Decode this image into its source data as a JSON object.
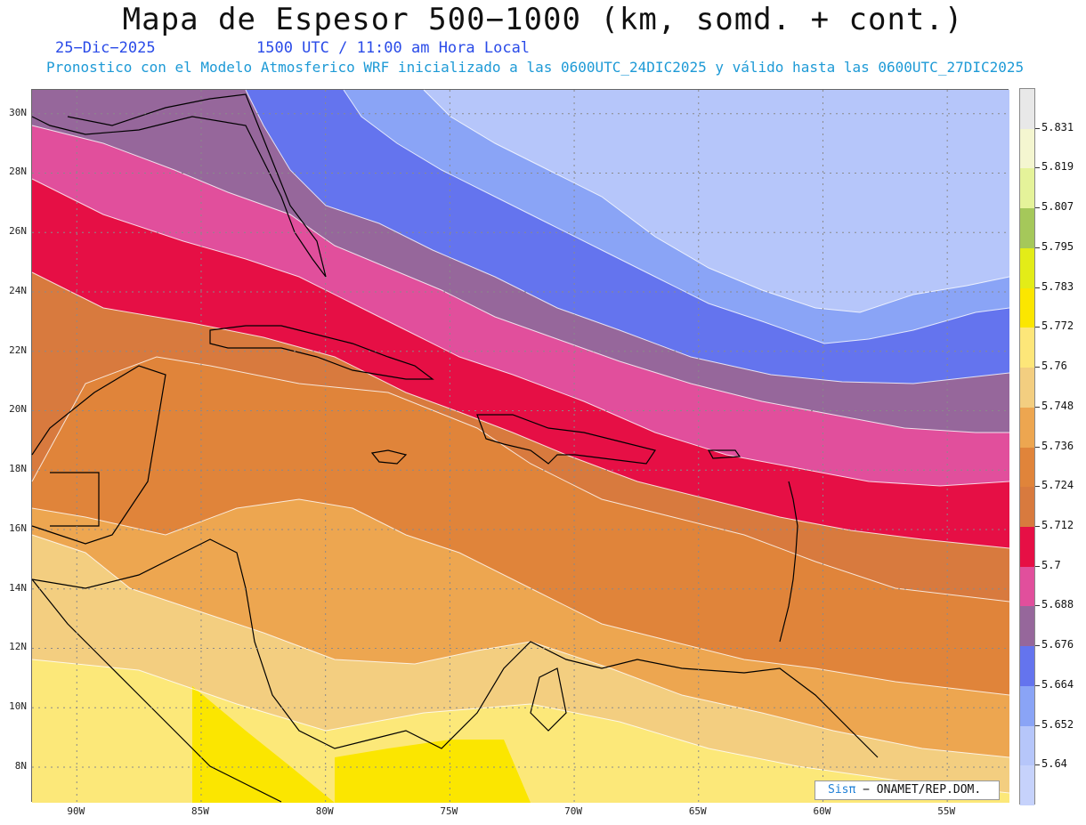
{
  "header": {
    "title": "Mapa de Espesor 500−1000 (km, somd. + cont.)",
    "date": "25−Dic−2025",
    "time": "1500 UTC / 11:00 am Hora Local",
    "subtitle": "Pronostico con el Modelo Atmosferico WRF inicializado a las 0600UTC_24DIC2025 y válido hasta las  0600UTC_27DIC2025"
  },
  "map": {
    "lat_labels": [
      "30N",
      "28N",
      "26N",
      "24N",
      "22N",
      "20N",
      "18N",
      "16N",
      "14N",
      "12N",
      "10N",
      "8N"
    ],
    "lon_labels": [
      "90W",
      "85W",
      "80W",
      "75W",
      "70W",
      "65W",
      "60W",
      "55W"
    ],
    "lat_values": [
      30,
      28,
      26,
      24,
      22,
      20,
      18,
      16,
      14,
      12,
      10,
      8
    ],
    "lon_values": [
      -90,
      -85,
      -80,
      -75,
      -70,
      -65,
      -60,
      -55
    ],
    "lon_range": [
      -91.8,
      -52.5
    ],
    "lat_range": [
      6.8,
      30.8
    ],
    "grid": true,
    "palette": {
      "above_5_736": "#e0843a",
      "5_748": "#eda650",
      "5_76": "#f3ce80",
      "5_772": "#fce879",
      "5_784": "#fbe600",
      "5_724": "#d87a3e",
      "5_712": "#e60f45",
      "5_7": "#e14f9c",
      "5_688": "#96679b",
      "5_676": "#6474ee",
      "5_664": "#8aa4f6",
      "5_652": "#b6c6fa"
    }
  },
  "colorbar": {
    "labels": [
      "5.831",
      "5.819",
      "5.807",
      "5.795",
      "5.783",
      "5.772",
      "5.76",
      "5.748",
      "5.736",
      "5.724",
      "5.712",
      "5.7",
      "5.688",
      "5.676",
      "5.664",
      "5.652",
      "5.64"
    ],
    "colors": [
      "#e8e8e8",
      "#f4f6d0",
      "#e5f39a",
      "#a5c85a",
      "#e3ec18",
      "#fbe600",
      "#fde679",
      "#f3ce80",
      "#eda650",
      "#e0843a",
      "#d87a3e",
      "#e60f45",
      "#e14f9c",
      "#96679b",
      "#6474ee",
      "#8aa4f6",
      "#b6c6fa",
      "#c6d2fb"
    ]
  },
  "credit": {
    "sis": "Sisπ",
    "text": "− ONAMET/REP.DOM."
  }
}
